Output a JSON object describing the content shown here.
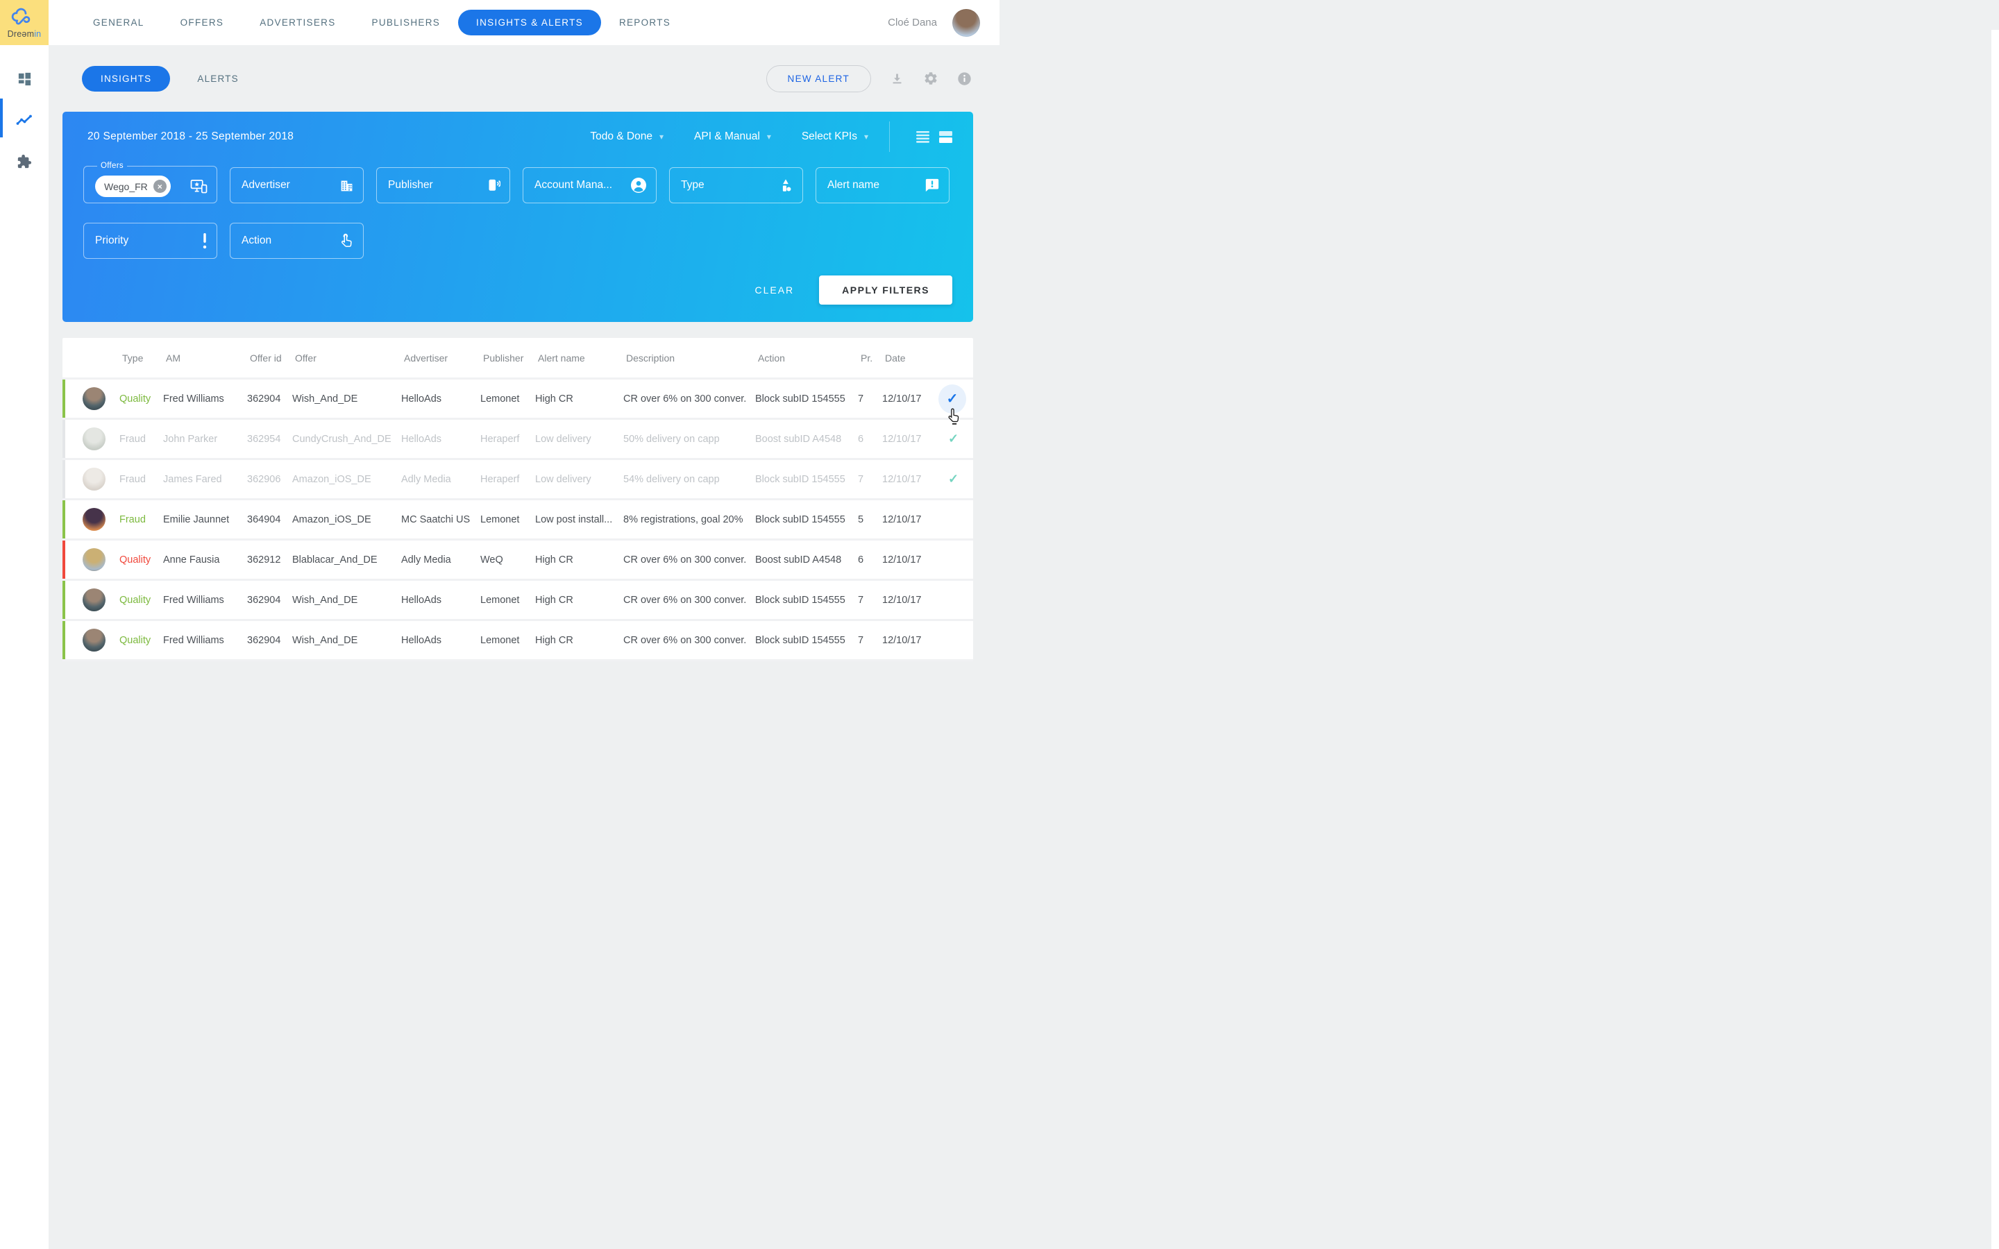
{
  "brand": {
    "name_primary": "Dreəm",
    "name_accent": "in"
  },
  "topnav": {
    "items": [
      {
        "label": "GENERAL",
        "active": false
      },
      {
        "label": "OFFERS",
        "active": false
      },
      {
        "label": "ADVERTISERS",
        "active": false
      },
      {
        "label": "PUBLISHERS",
        "active": false
      },
      {
        "label": "INSIGHTS & ALERTS",
        "active": true
      },
      {
        "label": "REPORTS",
        "active": false
      }
    ],
    "user": {
      "name": "Cloé Dana"
    }
  },
  "sidebar": {
    "items": [
      {
        "icon": "dashboard-icon",
        "active": false
      },
      {
        "icon": "trend-icon",
        "active": true
      },
      {
        "icon": "puzzle-icon",
        "active": false
      }
    ]
  },
  "toolbar": {
    "tabs": [
      {
        "label": "INSIGHTS",
        "active": true
      },
      {
        "label": "ALERTS",
        "active": false
      }
    ],
    "new_alert_label": "NEW ALERT",
    "icons": [
      "download-icon",
      "gear-icon",
      "info-icon"
    ]
  },
  "filters": {
    "date_range": "20 September 2018 - 25 September 2018",
    "dropdowns": [
      "Todo & Done",
      "API & Manual",
      "Select KPIs"
    ],
    "fields_row1": [
      {
        "label": "Offers",
        "icon": "devices-icon",
        "chip": "Wego_FR"
      },
      {
        "label": "Advertiser",
        "icon": "building-icon"
      },
      {
        "label": "Publisher",
        "icon": "phone-signal-icon"
      },
      {
        "label": "Account Mana...",
        "icon": "person-icon"
      },
      {
        "label": "Type",
        "icon": "shapes-icon"
      },
      {
        "label": "Alert name",
        "icon": "alert-bubble-icon"
      }
    ],
    "fields_row2": [
      {
        "label": "Priority",
        "icon": "exclamation-icon"
      },
      {
        "label": "Action",
        "icon": "tap-icon"
      }
    ],
    "clear_label": "CLEAR",
    "apply_label": "APPLY FILTERS"
  },
  "table": {
    "columns": [
      "Type",
      "AM",
      "Offer id",
      "Offer",
      "Advertiser",
      "Publisher",
      "Alert name",
      "Description",
      "Action",
      "Pr.",
      "Date"
    ],
    "rows": [
      {
        "type": "Quality",
        "type_color": "green",
        "am": "Fred Williams",
        "offer_id": "362904",
        "offer": "Wish_And_DE",
        "advertiser": "HelloAds",
        "publisher": "Lemonet",
        "alert_name": "High CR",
        "description": "CR over 6% on 300 conver.",
        "action": "Block subID 154555",
        "pr": "7",
        "date": "12/10/17",
        "state": "active",
        "bar": "green",
        "check": "blue",
        "avatar": "fred"
      },
      {
        "type": "Fraud",
        "type_color": "muted",
        "am": "John Parker",
        "offer_id": "362954",
        "offer": "CundyCrush_And_DE",
        "advertiser": "HelloAds",
        "publisher": "Heraperf",
        "alert_name": "Low delivery",
        "description": "50% delivery on capp",
        "action": "Boost subID A4548",
        "pr": "6",
        "date": "12/10/17",
        "state": "done",
        "bar": "gray",
        "check": "teal",
        "avatar": "john"
      },
      {
        "type": "Fraud",
        "type_color": "muted",
        "am": "James Fared",
        "offer_id": "362906",
        "offer": "Amazon_iOS_DE",
        "advertiser": "Adly Media",
        "publisher": "Heraperf",
        "alert_name": "Low delivery",
        "description": "54% delivery on capp",
        "action": "Block subID 154555",
        "pr": "7",
        "date": "12/10/17",
        "state": "done",
        "bar": "gray",
        "check": "teal",
        "avatar": "james"
      },
      {
        "type": "Fraud",
        "type_color": "green",
        "am": "Emilie Jaunnet",
        "offer_id": "364904",
        "offer": "Amazon_iOS_DE",
        "advertiser": "MC Saatchi US",
        "publisher": "Lemonet",
        "alert_name": "Low post install...",
        "description": "8% registrations, goal 20%",
        "action": "Block subID 154555",
        "pr": "5",
        "date": "12/10/17",
        "state": "active",
        "bar": "green",
        "check": "none",
        "avatar": "emilie"
      },
      {
        "type": "Quality",
        "type_color": "red",
        "am": "Anne Fausia",
        "offer_id": "362912",
        "offer": "Blablacar_And_DE",
        "advertiser": "Adly Media",
        "publisher": "WeQ",
        "alert_name": "High CR",
        "description": "CR over 6% on 300 conver.",
        "action": "Boost subID A4548",
        "pr": "6",
        "date": "12/10/17",
        "state": "active",
        "bar": "red",
        "check": "none",
        "avatar": "anne"
      },
      {
        "type": "Quality",
        "type_color": "green",
        "am": "Fred Williams",
        "offer_id": "362904",
        "offer": "Wish_And_DE",
        "advertiser": "HelloAds",
        "publisher": "Lemonet",
        "alert_name": "High CR",
        "description": "CR over 6% on 300 conver.",
        "action": "Block subID 154555",
        "pr": "7",
        "date": "12/10/17",
        "state": "active",
        "bar": "green",
        "check": "none",
        "avatar": "fred"
      },
      {
        "type": "Quality",
        "type_color": "green",
        "am": "Fred Williams",
        "offer_id": "362904",
        "offer": "Wish_And_DE",
        "advertiser": "HelloAds",
        "publisher": "Lemonet",
        "alert_name": "High CR",
        "description": "CR over 6% on 300 conver.",
        "action": "Block subID 154555",
        "pr": "7",
        "date": "12/10/17",
        "state": "active",
        "bar": "green",
        "check": "none",
        "avatar": "fred"
      }
    ]
  },
  "colors": {
    "accent_blue": "#1b76e8",
    "panel_gradient_start": "#2d87f2",
    "panel_gradient_end": "#15c2eb",
    "logo_yellow": "#fbdf7d",
    "status_green": "#7cb93e",
    "status_red": "#f0483c",
    "done_teal": "#74d4c0"
  }
}
